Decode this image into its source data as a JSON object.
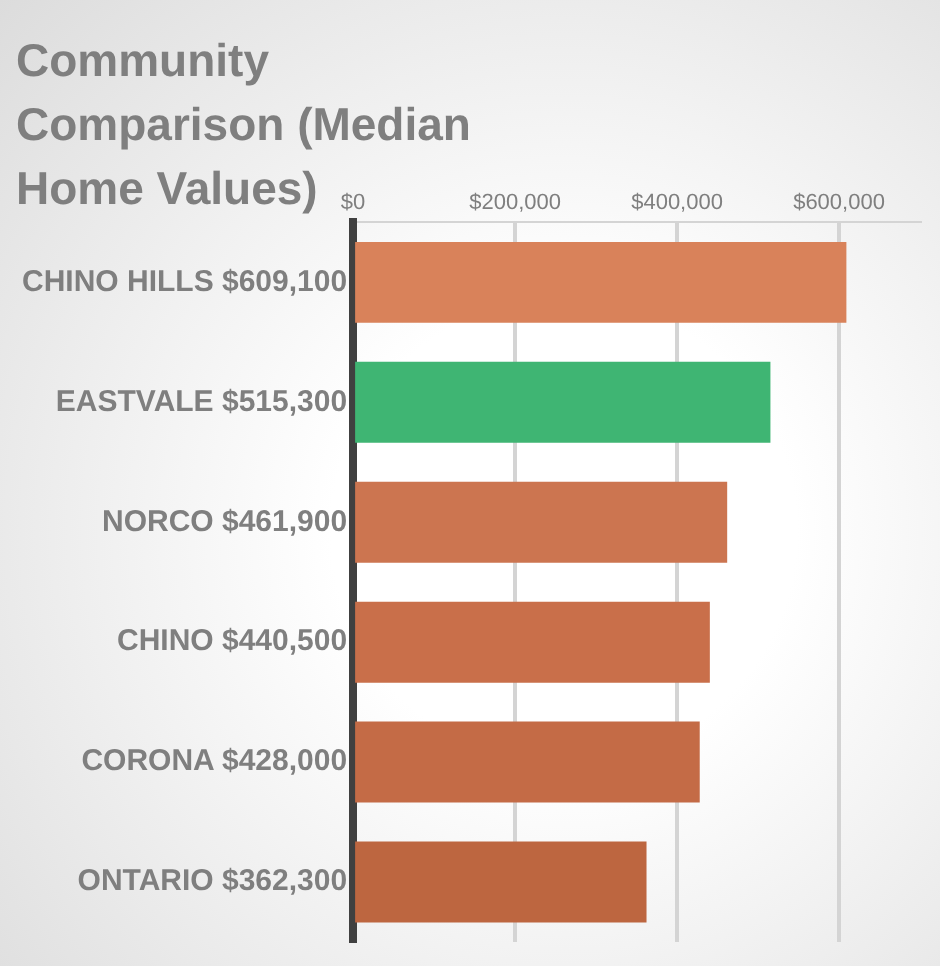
{
  "chart_data": {
    "type": "bar",
    "orientation": "horizontal",
    "title": "Community Comparison (Median Home Values)",
    "categories": [
      "CHINO HILLS $609,100",
      "EASTVALE $515,300",
      "NORCO $461,900",
      "CHINO $440,500",
      "CORONA $428,000",
      "ONTARIO $362,300"
    ],
    "values": [
      609100,
      515300,
      461900,
      440500,
      428000,
      362300
    ],
    "colors": [
      "#d9825a",
      "#3fb573",
      "#cc7550",
      "#c96f4a",
      "#c46b46",
      "#bd6640"
    ],
    "xlim": [
      0,
      700000
    ],
    "xticks": [
      {
        "value": 0,
        "label": "$0"
      },
      {
        "value": 200000,
        "label": "$200,000"
      },
      {
        "value": 400000,
        "label": "$400,000"
      },
      {
        "value": 600000,
        "label": "$600,000"
      }
    ],
    "grid": "x",
    "legend": false
  }
}
